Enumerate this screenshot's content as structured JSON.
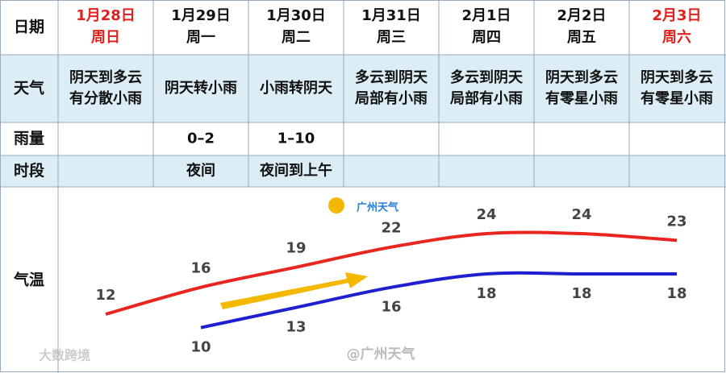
{
  "header": {
    "label": "日期",
    "days": [
      {
        "date": "1月28日",
        "weekday": "周日",
        "color": "#e0201c"
      },
      {
        "date": "1月29日",
        "weekday": "周一",
        "color": "#111111"
      },
      {
        "date": "1月30日",
        "weekday": "周二",
        "color": "#111111"
      },
      {
        "date": "1月31日",
        "weekday": "周三",
        "color": "#111111"
      },
      {
        "date": "2月1日",
        "weekday": "周四",
        "color": "#111111"
      },
      {
        "date": "2月2日",
        "weekday": "周五",
        "color": "#111111"
      },
      {
        "date": "2月3日",
        "weekday": "周六",
        "color": "#e0201c"
      }
    ]
  },
  "rows": [
    {
      "label": "天气",
      "cells": [
        [
          "阴天到多云",
          "有分散小雨"
        ],
        [
          "阴天转小雨"
        ],
        [
          "小雨转阴天"
        ],
        [
          "多云到阴天",
          "局部有小雨"
        ],
        [
          "多云到阴天",
          "局部有小雨"
        ],
        [
          "阴天到多云",
          "有零星小雨"
        ],
        [
          "阴天到多云",
          "有零星小雨"
        ]
      ]
    },
    {
      "label": "雨量",
      "cells": [
        null,
        [
          "0–2"
        ],
        [
          "1–10"
        ],
        null,
        null,
        null,
        null
      ]
    },
    {
      "label": "时段",
      "cells": [
        null,
        [
          "夜间"
        ],
        [
          "夜间到上午"
        ],
        null,
        null,
        null,
        null
      ]
    }
  ],
  "temperature": {
    "label": "气温",
    "high": {
      "color": "#e8251f",
      "values": [
        12,
        16,
        19,
        22,
        24,
        24,
        23
      ]
    },
    "low": {
      "color": "#1f1fd0",
      "values": [
        null,
        10,
        13,
        16,
        18,
        18,
        18
      ]
    }
  },
  "watermarks": [
    "广州天气",
    "@广州天气",
    "大数跨境"
  ]
}
